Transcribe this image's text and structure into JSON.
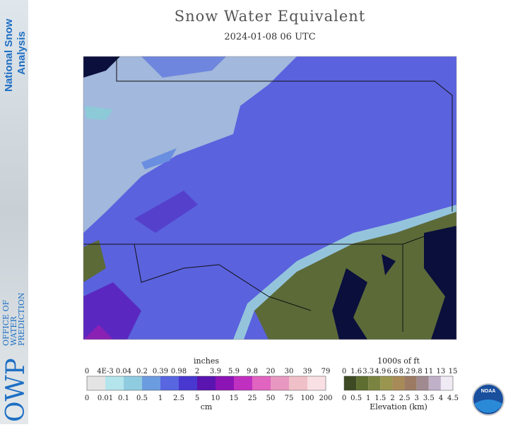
{
  "sidebar": {
    "brand_line1": "National Snow",
    "brand_line2": "Analysis",
    "office_line1": "OFFICE OF",
    "office_line2": "WATER",
    "office_line3": "PREDICTION",
    "logo": "OWP"
  },
  "header": {
    "title": "Snow Water Equivalent",
    "subtitle": "2024-01-08 06 UTC"
  },
  "snow_legend": {
    "title": "inches",
    "unit": "cm",
    "top_labels": [
      0,
      "4E-3",
      0.04,
      0.2,
      0.39,
      0.98,
      2,
      3.9,
      5.9,
      9.8,
      20,
      30,
      39,
      79
    ],
    "bottom_labels": [
      0,
      0.01,
      0.1,
      0.5,
      1,
      2.5,
      5,
      10,
      15,
      25,
      50,
      75,
      100,
      200
    ],
    "colors": [
      "#e4e4e4",
      "#b4e4ec",
      "#90cce0",
      "#6c9ce0",
      "#5866e0",
      "#4838d0",
      "#5a14b0",
      "#8c14b4",
      "#c030c0",
      "#e064c0",
      "#e898c0",
      "#f0c0c8",
      "#f8e0e4"
    ]
  },
  "elevation_legend": {
    "title": "1000s of ft",
    "unit": "Elevation (km)",
    "top_labels": [
      0,
      1.6,
      3.3,
      4.9,
      6.6,
      8.2,
      9.8,
      11,
      13,
      15
    ],
    "bottom_labels": [
      0,
      0.5,
      1,
      1.5,
      2,
      2.5,
      3,
      3.5,
      4,
      4.5
    ],
    "colors": [
      "#3e4a24",
      "#5e6e30",
      "#7a8440",
      "#9a9650",
      "#a88a58",
      "#9c7a64",
      "#a08a90",
      "#c0b0c8",
      "#f0eaf4"
    ]
  },
  "noaa": {
    "label": "NOAA"
  }
}
